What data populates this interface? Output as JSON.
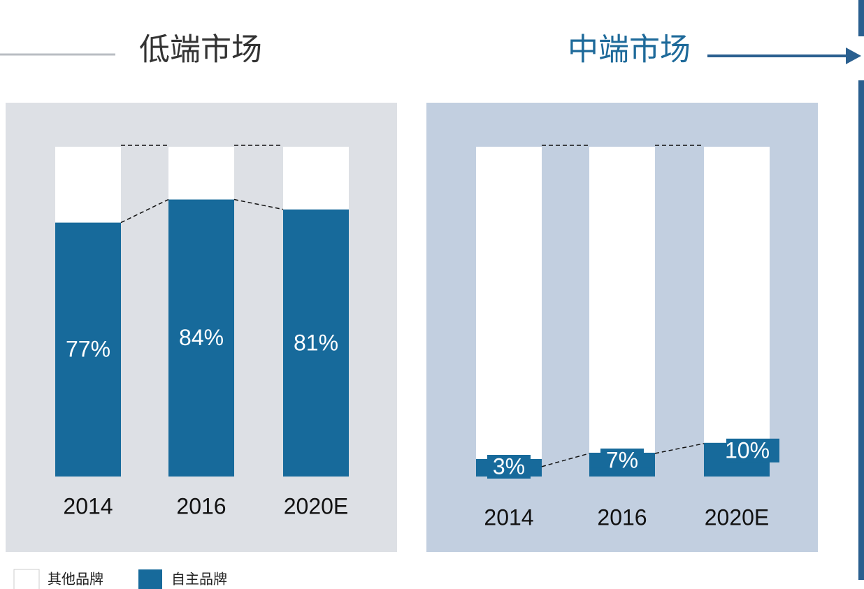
{
  "chart_data": [
    {
      "type": "bar",
      "stacked": true,
      "title": "低端市场",
      "categories": [
        "2014",
        "2016",
        "2020E"
      ],
      "ylim": [
        0,
        100
      ],
      "series": [
        {
          "name": "其他品牌",
          "color": "#ffffff",
          "values": [
            23,
            16,
            19
          ]
        },
        {
          "name": "自主品牌",
          "color": "#176a9b",
          "values": [
            77,
            84,
            81
          ],
          "value_labels": [
            "77%",
            "84%",
            "81%"
          ]
        }
      ]
    },
    {
      "type": "bar",
      "stacked": true,
      "title": "中端市场",
      "categories": [
        "2014",
        "2016",
        "2020E"
      ],
      "ylim": [
        0,
        100
      ],
      "series": [
        {
          "color": "#ffffff",
          "values": [
            97,
            93,
            90
          ]
        },
        {
          "color": "#176a9b",
          "values": [
            3,
            7,
            10
          ],
          "value_labels": [
            "3%",
            "7%",
            "10%"
          ]
        }
      ]
    }
  ]
}
